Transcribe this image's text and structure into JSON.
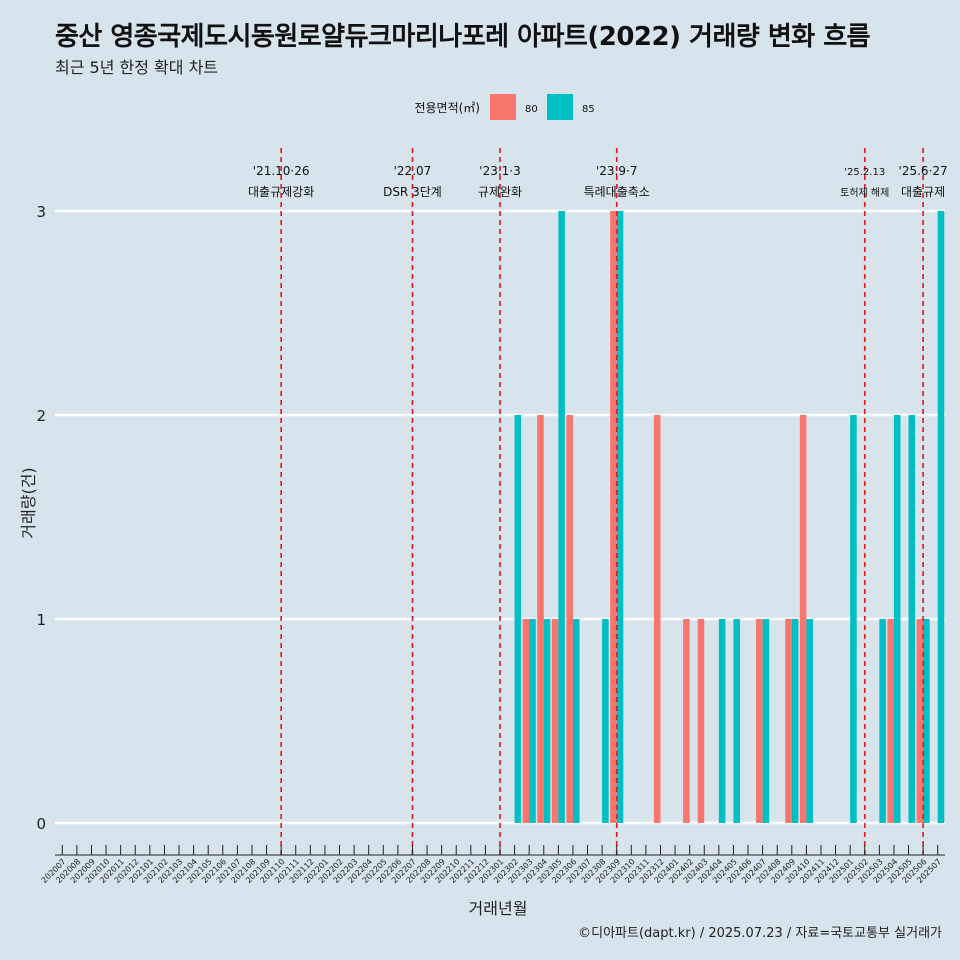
{
  "title": "중산 영종국제도시동원로얄듀크마리나포레 아파트(2022) 거래량 변화 흐름",
  "subtitle": "최근 5년 한정 확대 차트",
  "caption": "©디아파트(dapt.kr) / 2025.07.23 / 자료=국토교통부 실거래가",
  "chart_data": {
    "type": "bar",
    "xlabel": "거래년월",
    "ylabel": "거래량(건)",
    "ylim": [
      0,
      3
    ],
    "yticks": [
      0,
      1,
      2,
      3
    ],
    "legend": {
      "title": "전용면적(㎡)",
      "position": "top"
    },
    "categories": [
      "202007",
      "202008",
      "202009",
      "202010",
      "202011",
      "202012",
      "202101",
      "202102",
      "202103",
      "202104",
      "202105",
      "202106",
      "202107",
      "202108",
      "202109",
      "202110",
      "202111",
      "202112",
      "202201",
      "202202",
      "202203",
      "202204",
      "202205",
      "202206",
      "202207",
      "202208",
      "202209",
      "202210",
      "202211",
      "202212",
      "202301",
      "202302",
      "202303",
      "202304",
      "202305",
      "202306",
      "202307",
      "202308",
      "202309",
      "202310",
      "202311",
      "202312",
      "202401",
      "202402",
      "202403",
      "202404",
      "202405",
      "202406",
      "202407",
      "202408",
      "202409",
      "202410",
      "202411",
      "202412",
      "202501",
      "202502",
      "202503",
      "202504",
      "202505",
      "202506",
      "202507"
    ],
    "series": [
      {
        "name": "80",
        "color": "#f8766d",
        "values": [
          0,
          0,
          0,
          0,
          0,
          0,
          0,
          0,
          0,
          0,
          0,
          0,
          0,
          0,
          0,
          0,
          0,
          0,
          0,
          0,
          0,
          0,
          0,
          0,
          0,
          0,
          0,
          0,
          0,
          0,
          0,
          0,
          1,
          2,
          1,
          2,
          0,
          0,
          3,
          0,
          0,
          2,
          0,
          1,
          1,
          0,
          0,
          0,
          1,
          0,
          1,
          2,
          0,
          0,
          0,
          0,
          0,
          1,
          0,
          1,
          0
        ]
      },
      {
        "name": "85",
        "color": "#00bfc4",
        "values": [
          0,
          0,
          0,
          0,
          0,
          0,
          0,
          0,
          0,
          0,
          0,
          0,
          0,
          0,
          0,
          0,
          0,
          0,
          0,
          0,
          0,
          0,
          0,
          0,
          0,
          0,
          0,
          0,
          0,
          0,
          0,
          2,
          1,
          1,
          3,
          1,
          0,
          1,
          3,
          0,
          0,
          0,
          0,
          0,
          0,
          1,
          1,
          0,
          1,
          0,
          1,
          1,
          0,
          0,
          2,
          0,
          1,
          2,
          2,
          1,
          3
        ]
      }
    ],
    "events": [
      {
        "date": "202110",
        "label1": "'21.10·26",
        "label2": "대출규제강화"
      },
      {
        "date": "202207",
        "label1": "'22.07",
        "label2": "DSR 3단계"
      },
      {
        "date": "202301",
        "label1": "'23.1·3",
        "label2": "규제완화"
      },
      {
        "date": "202309",
        "label1": "'23.9·7",
        "label2": "특례대출축소"
      },
      {
        "date": "202502",
        "label1": "'25.2.13",
        "label2": "토허제 해제"
      },
      {
        "date": "202506",
        "label1": "'25.6·27",
        "label2": "대출규제"
      }
    ]
  }
}
